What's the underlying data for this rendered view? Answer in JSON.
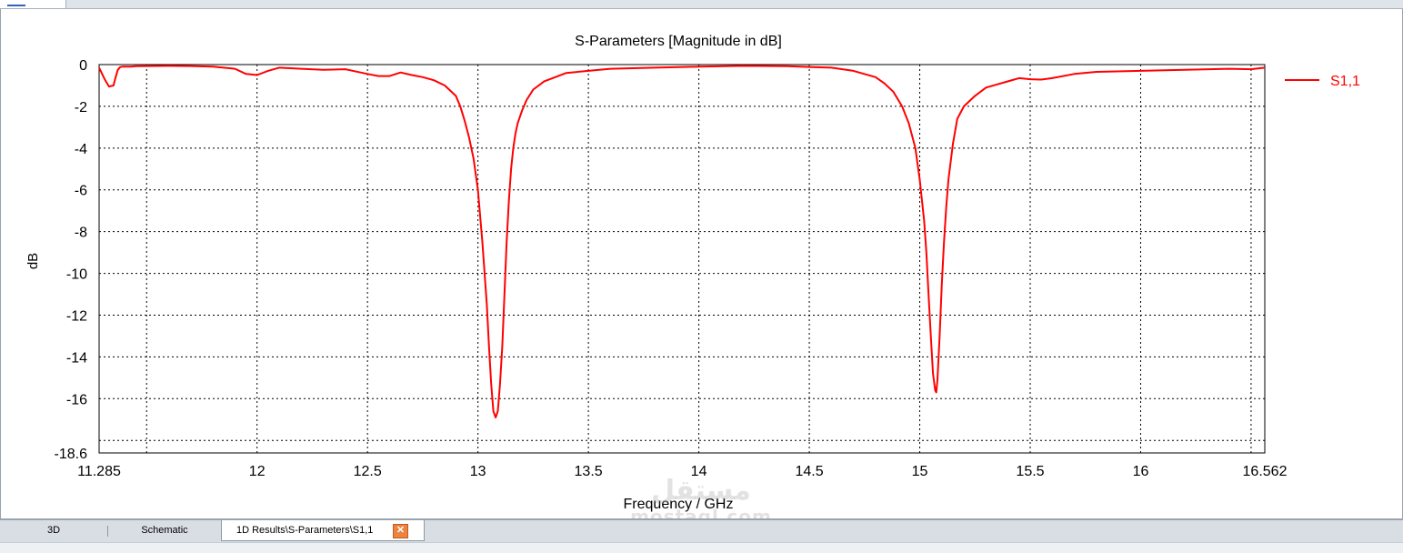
{
  "tabs": [
    {
      "label": "3D"
    },
    {
      "label": "Schematic"
    },
    {
      "label": "1D Results\\S-Parameters\\S1,1"
    }
  ],
  "close_icon": "close-icon",
  "watermark": {
    "line1": "مستقل",
    "line2": "mostaql.com"
  },
  "chart_data": {
    "type": "line",
    "title": "S-Parameters [Magnitude in dB]",
    "xlabel": "Frequency / GHz",
    "ylabel": "dB",
    "xlim": [
      11.285,
      16.562
    ],
    "ylim": [
      -18.6,
      0
    ],
    "xticks": [
      11.285,
      12,
      12.5,
      13,
      13.5,
      14,
      14.5,
      15,
      15.5,
      16,
      16.562
    ],
    "xtick_labels": [
      "11.285",
      "12",
      "12.5",
      "13",
      "13.5",
      "14",
      "14.5",
      "15",
      "15.5",
      "16",
      "16.562"
    ],
    "xgrid": [
      11.5,
      12,
      12.5,
      13,
      13.5,
      14,
      14.5,
      15,
      15.5,
      16,
      16.5
    ],
    "yticks": [
      0,
      -2,
      -4,
      -6,
      -8,
      -10,
      -12,
      -14,
      -16,
      -18.6
    ],
    "ytick_labels": [
      "0",
      "-2",
      "-4",
      "-6",
      "-8",
      "-10",
      "-12",
      "-14",
      "-16",
      "-18.6"
    ],
    "ygrid": [
      -2,
      -4,
      -6,
      -8,
      -10,
      -12,
      -14,
      -16,
      -18
    ],
    "grid": true,
    "legend_position": "right",
    "series": [
      {
        "name": "S1,1",
        "color": "#ff0000",
        "x": [
          11.285,
          11.31,
          11.33,
          11.35,
          11.36,
          11.37,
          11.38,
          11.39,
          11.41,
          11.43,
          11.45,
          11.5,
          11.6,
          11.7,
          11.8,
          11.9,
          11.95,
          12.0,
          12.05,
          12.1,
          12.2,
          12.3,
          12.4,
          12.5,
          12.55,
          12.6,
          12.65,
          12.7,
          12.75,
          12.8,
          12.85,
          12.9,
          12.92,
          12.94,
          12.96,
          12.98,
          13.0,
          13.02,
          13.04,
          13.05,
          13.06,
          13.07,
          13.08,
          13.09,
          13.1,
          13.11,
          13.12,
          13.13,
          13.14,
          13.15,
          13.16,
          13.17,
          13.18,
          13.2,
          13.22,
          13.25,
          13.3,
          13.35,
          13.4,
          13.5,
          13.6,
          13.8,
          14.0,
          14.2,
          14.4,
          14.6,
          14.7,
          14.8,
          14.84,
          14.88,
          14.92,
          14.95,
          14.98,
          15.0,
          15.02,
          15.03,
          15.04,
          15.05,
          15.06,
          15.07,
          15.075,
          15.08,
          15.09,
          15.1,
          15.11,
          15.12,
          15.13,
          15.15,
          15.17,
          15.2,
          15.25,
          15.3,
          15.35,
          15.4,
          15.45,
          15.5,
          15.55,
          15.6,
          15.7,
          15.8,
          16.0,
          16.2,
          16.4,
          16.5,
          16.562
        ],
        "y": [
          -0.15,
          -0.7,
          -1.05,
          -1.0,
          -0.6,
          -0.25,
          -0.12,
          -0.1,
          -0.1,
          -0.1,
          -0.08,
          -0.07,
          -0.06,
          -0.07,
          -0.1,
          -0.2,
          -0.45,
          -0.5,
          -0.3,
          -0.15,
          -0.2,
          -0.25,
          -0.22,
          -0.45,
          -0.55,
          -0.55,
          -0.38,
          -0.5,
          -0.6,
          -0.75,
          -1.0,
          -1.5,
          -2.0,
          -2.7,
          -3.5,
          -4.5,
          -6.0,
          -8.5,
          -11.5,
          -13.5,
          -15.3,
          -16.6,
          -16.9,
          -16.6,
          -15.3,
          -13.5,
          -11.0,
          -8.5,
          -6.5,
          -5.0,
          -4.0,
          -3.3,
          -2.8,
          -2.2,
          -1.7,
          -1.2,
          -0.8,
          -0.6,
          -0.4,
          -0.3,
          -0.2,
          -0.15,
          -0.1,
          -0.06,
          -0.08,
          -0.15,
          -0.3,
          -0.6,
          -0.9,
          -1.3,
          -2.0,
          -2.8,
          -4.0,
          -5.5,
          -7.5,
          -9.0,
          -11.0,
          -13.0,
          -14.8,
          -15.6,
          -15.7,
          -15.1,
          -13.0,
          -10.5,
          -8.5,
          -6.8,
          -5.5,
          -3.8,
          -2.6,
          -2.0,
          -1.5,
          -1.1,
          -0.95,
          -0.8,
          -0.65,
          -0.7,
          -0.72,
          -0.65,
          -0.45,
          -0.35,
          -0.3,
          -0.25,
          -0.2,
          -0.22,
          -0.15
        ]
      }
    ]
  }
}
